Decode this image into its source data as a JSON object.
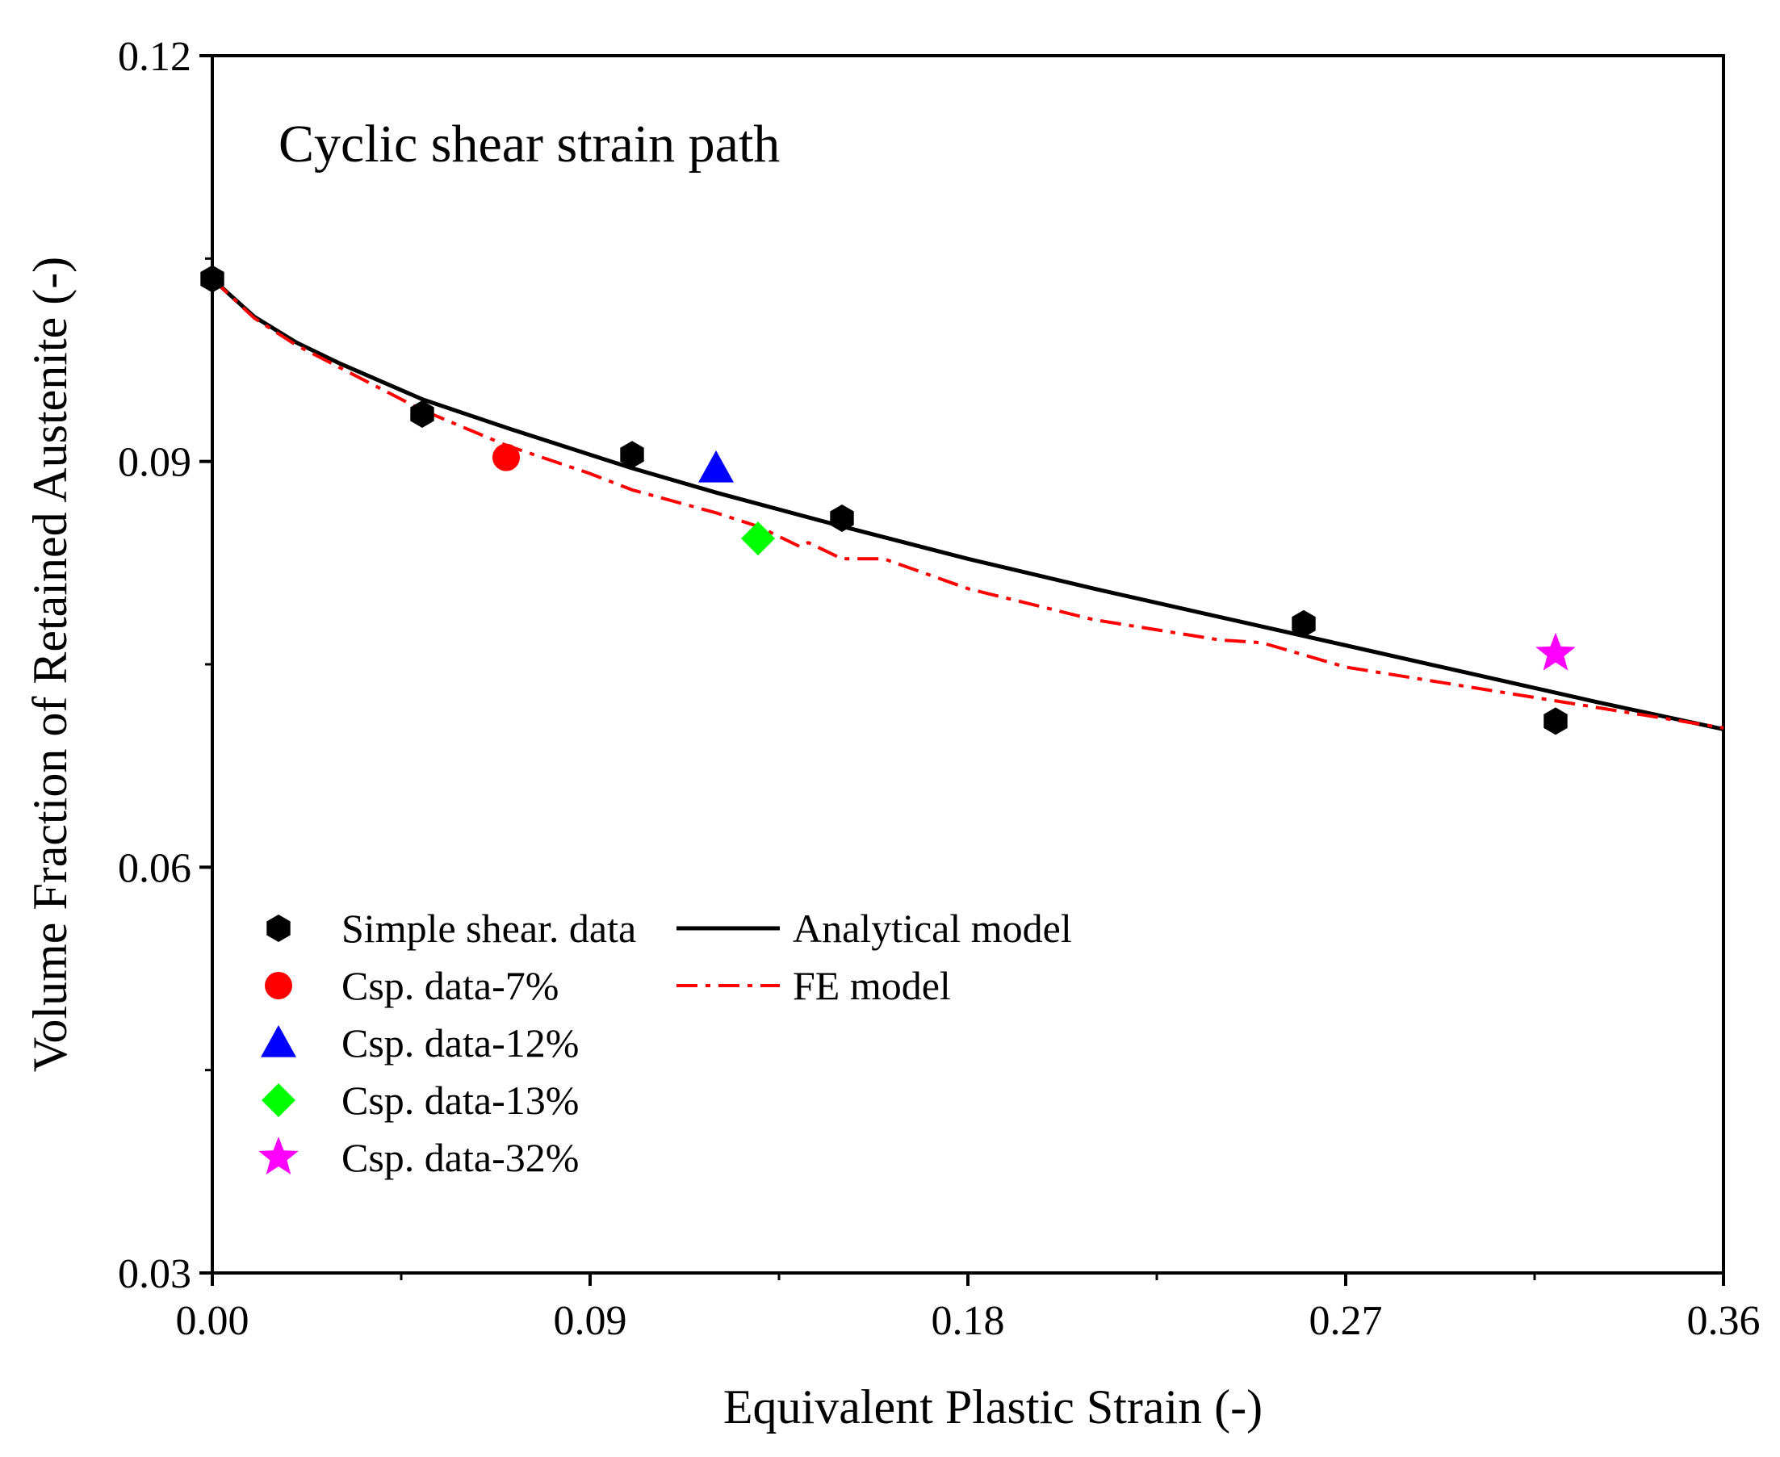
{
  "chart_data": {
    "type": "scatter",
    "annotation": "Cyclic shear strain path",
    "xlabel": "Equivalent Plastic Strain (-)",
    "ylabel": "Volume Fraction of Retained Austenite (-)",
    "xlim": [
      0.0,
      0.36
    ],
    "ylim": [
      0.03,
      0.12
    ],
    "xticks": [
      "0.00",
      "0.09",
      "0.18",
      "0.27",
      "0.36"
    ],
    "yticks": [
      "0.03",
      "0.06",
      "0.09",
      "0.12"
    ],
    "grid": false,
    "legend_position": "bottom-left",
    "series": [
      {
        "name": "Simple shear. data",
        "kind": "points",
        "marker": "hexagon",
        "color": "#000000",
        "x": [
          0.0,
          0.05,
          0.1,
          0.15,
          0.26,
          0.32
        ],
        "y": [
          0.1035,
          0.0935,
          0.0905,
          0.0858,
          0.078,
          0.0708
        ]
      },
      {
        "name": "Csp. data-7%",
        "kind": "points",
        "marker": "circle",
        "color": "#ff0000",
        "x": [
          0.07
        ],
        "y": [
          0.0903
        ]
      },
      {
        "name": "Csp. data-12%",
        "kind": "points",
        "marker": "triangle",
        "color": "#0000ff",
        "x": [
          0.12
        ],
        "y": [
          0.0895
        ]
      },
      {
        "name": "Csp. data-13%",
        "kind": "points",
        "marker": "diamond",
        "color": "#00ff00",
        "x": [
          0.13
        ],
        "y": [
          0.0843
        ]
      },
      {
        "name": "Csp. data-32%",
        "kind": "points",
        "marker": "star",
        "color": "#ff00ff",
        "x": [
          0.32
        ],
        "y": [
          0.0758
        ]
      },
      {
        "name": "Analytical model",
        "kind": "line",
        "dash": "solid",
        "color": "#000000",
        "x": [
          0.0,
          0.01,
          0.02,
          0.03,
          0.05,
          0.07,
          0.1,
          0.12,
          0.15,
          0.18,
          0.21,
          0.24,
          0.27,
          0.3,
          0.33,
          0.36
        ],
        "y": [
          0.1035,
          0.1007,
          0.0988,
          0.0973,
          0.0946,
          0.0925,
          0.0895,
          0.0877,
          0.0852,
          0.0828,
          0.0806,
          0.0785,
          0.0764,
          0.0743,
          0.0722,
          0.0702
        ]
      },
      {
        "name": "FE model",
        "kind": "line",
        "dash": "dash-dot",
        "color": "#ff0000",
        "x": [
          0.0,
          0.01,
          0.02,
          0.03,
          0.05,
          0.07,
          0.09,
          0.1,
          0.12,
          0.13,
          0.14,
          0.142,
          0.15,
          0.16,
          0.18,
          0.21,
          0.24,
          0.25,
          0.27,
          0.3,
          0.33,
          0.36
        ],
        "y": [
          0.1035,
          0.1006,
          0.0986,
          0.097,
          0.0938,
          0.0912,
          0.0891,
          0.0879,
          0.0862,
          0.0852,
          0.0837,
          0.084,
          0.0828,
          0.0828,
          0.0806,
          0.0783,
          0.0768,
          0.0766,
          0.0748,
          0.0733,
          0.0718,
          0.0703
        ]
      }
    ]
  }
}
